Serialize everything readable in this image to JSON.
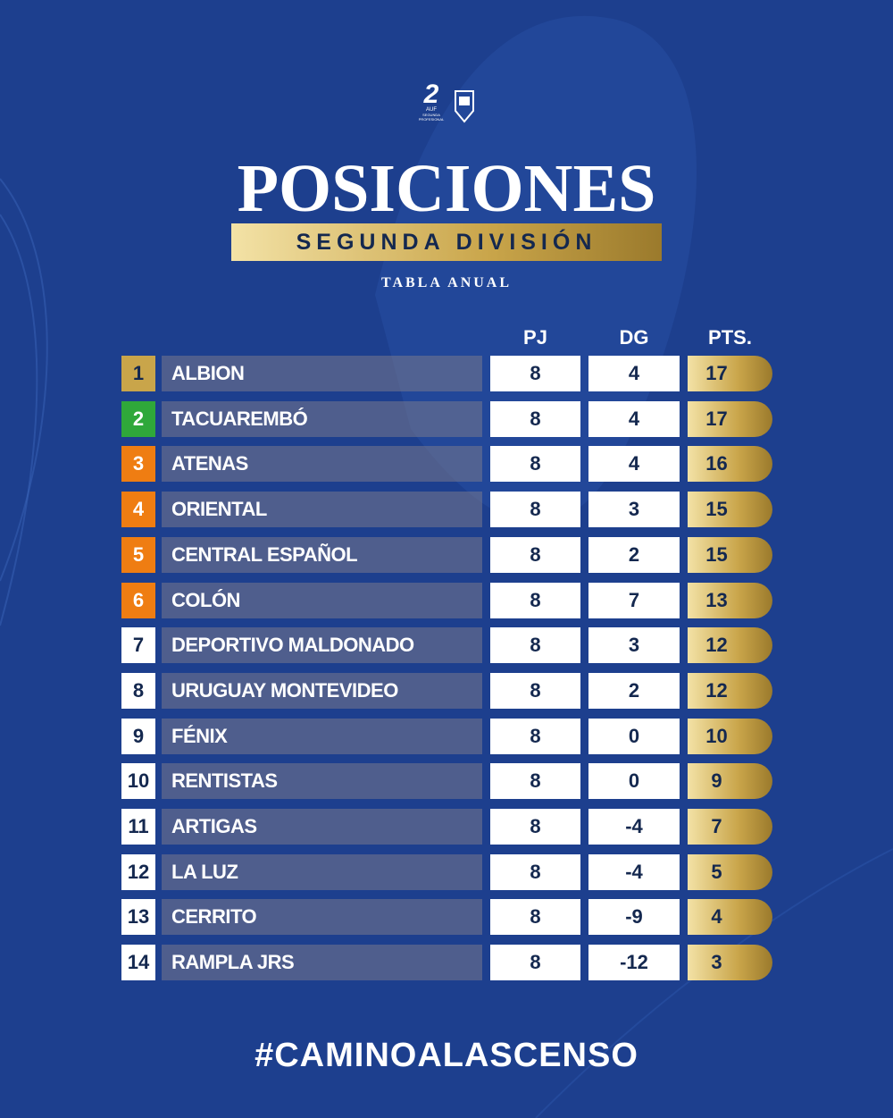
{
  "logo": {
    "number": "2",
    "brand": "AUF",
    "sub": "SEGUNDA PROFESIONAL"
  },
  "header": {
    "title": "POSICIONES",
    "subtitle": "SEGUNDA DIVISIÓN",
    "caption": "TABLA ANUAL"
  },
  "table": {
    "columns": [
      "PJ",
      "DG",
      "PTS."
    ],
    "rows": [
      {
        "pos": 1,
        "team": "ALBION",
        "pj": 8,
        "dg": 4,
        "pts": 17,
        "color": "#c9a54a"
      },
      {
        "pos": 2,
        "team": "TACUAREMBÓ",
        "pj": 8,
        "dg": 4,
        "pts": 17,
        "color": "#2fa83a"
      },
      {
        "pos": 3,
        "team": "ATENAS",
        "pj": 8,
        "dg": 4,
        "pts": 16,
        "color": "#ef7d12"
      },
      {
        "pos": 4,
        "team": "ORIENTAL",
        "pj": 8,
        "dg": 3,
        "pts": 15,
        "color": "#ef7d12"
      },
      {
        "pos": 5,
        "team": "CENTRAL ESPAÑOL",
        "pj": 8,
        "dg": 2,
        "pts": 15,
        "color": "#ef7d12"
      },
      {
        "pos": 6,
        "team": "COLÓN",
        "pj": 8,
        "dg": 7,
        "pts": 13,
        "color": "#ef7d12"
      },
      {
        "pos": 7,
        "team": "DEPORTIVO MALDONADO",
        "pj": 8,
        "dg": 3,
        "pts": 12,
        "color": "#ffffff"
      },
      {
        "pos": 8,
        "team": "URUGUAY MONTEVIDEO",
        "pj": 8,
        "dg": 2,
        "pts": 12,
        "color": "#ffffff"
      },
      {
        "pos": 9,
        "team": "FÉNIX",
        "pj": 8,
        "dg": 0,
        "pts": 10,
        "color": "#ffffff"
      },
      {
        "pos": 10,
        "team": "RENTISTAS",
        "pj": 8,
        "dg": 0,
        "pts": 9,
        "color": "#ffffff"
      },
      {
        "pos": 11,
        "team": "ARTIGAS",
        "pj": 8,
        "dg": -4,
        "pts": 7,
        "color": "#ffffff"
      },
      {
        "pos": 12,
        "team": "LA LUZ",
        "pj": 8,
        "dg": -4,
        "pts": 5,
        "color": "#ffffff"
      },
      {
        "pos": 13,
        "team": "CERRITO",
        "pj": 8,
        "dg": -9,
        "pts": 4,
        "color": "#ffffff"
      },
      {
        "pos": 14,
        "team": "RAMPLA JRS",
        "pj": 8,
        "dg": -12,
        "pts": 3,
        "color": "#ffffff"
      }
    ]
  },
  "footer": {
    "hashtag": "#CAMINOALASCENSO"
  }
}
